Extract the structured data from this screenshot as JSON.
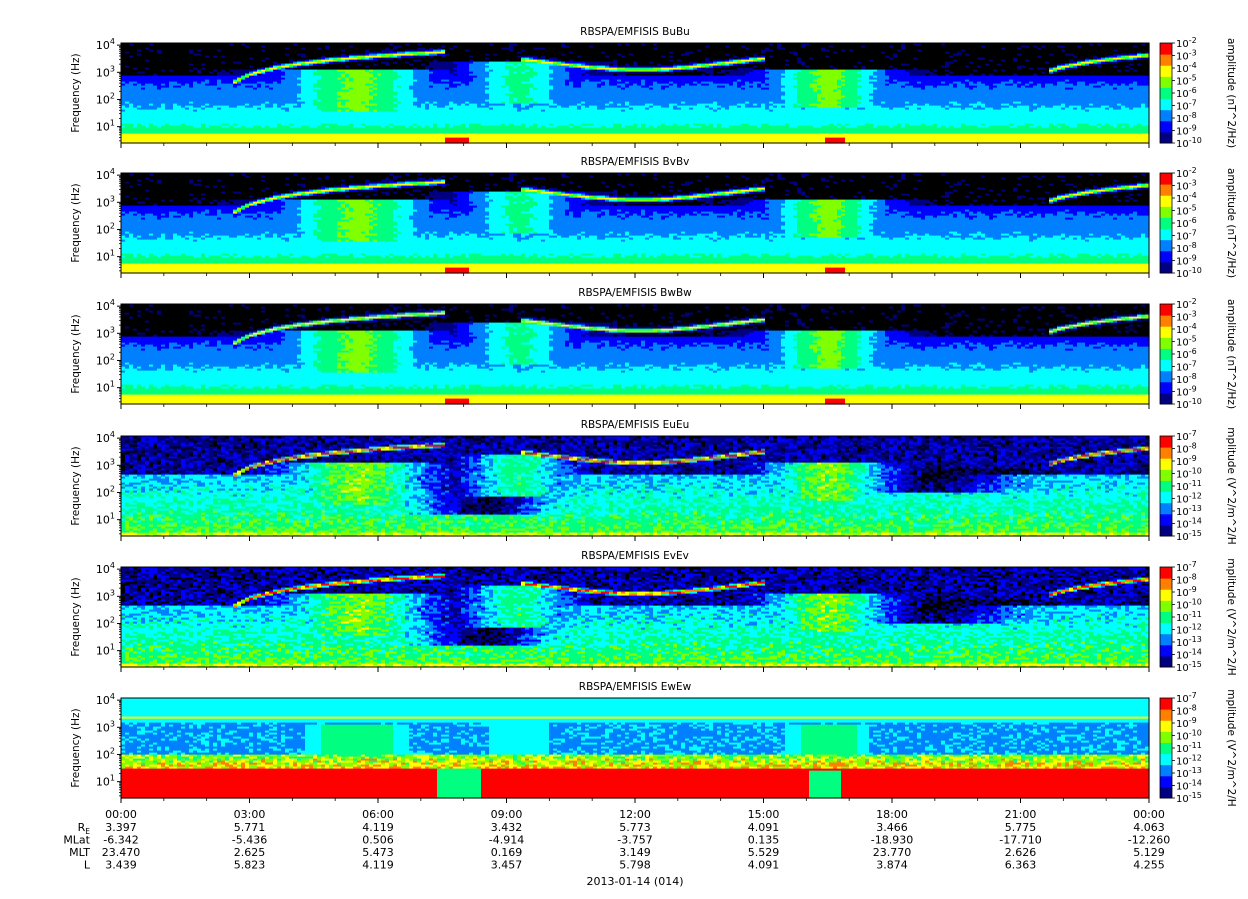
{
  "chart_data": {
    "type": "heatmap",
    "date_label": "2013-01-14 (014)",
    "x_ticks": [
      "00:00",
      "03:00",
      "06:00",
      "09:00",
      "12:00",
      "15:00",
      "18:00",
      "21:00",
      "00:00"
    ],
    "x_range_hours": [
      0,
      24
    ],
    "y_label": "Frequency (Hz)",
    "y_scale": "log",
    "y_range_hz": [
      2.5,
      12000
    ],
    "y_ticks": [
      {
        "base": "10",
        "exp": "1",
        "value": 10
      },
      {
        "base": "10",
        "exp": "2",
        "value": 100
      },
      {
        "base": "10",
        "exp": "3",
        "value": 1000
      },
      {
        "base": "10",
        "exp": "4",
        "value": 10000
      }
    ],
    "colormap": [
      "#000080",
      "#0000ff",
      "#0080ff",
      "#00ffff",
      "#00ff80",
      "#80ff00",
      "#ffff00",
      "#ff8000",
      "#ff0000"
    ],
    "panels": [
      {
        "title": "RBSPA/EMFISIS  BuBu",
        "type": "B",
        "colorbar_label": "amplitude (nT^2/Hz)",
        "colorbar_ticks": [
          {
            "base": "10",
            "exp": "-2"
          },
          {
            "base": "10",
            "exp": "-3"
          },
          {
            "base": "10",
            "exp": "-4"
          },
          {
            "base": "10",
            "exp": "-5"
          },
          {
            "base": "10",
            "exp": "-6"
          },
          {
            "base": "10",
            "exp": "-7"
          },
          {
            "base": "10",
            "exp": "-8"
          },
          {
            "base": "10",
            "exp": "-9"
          },
          {
            "base": "10",
            "exp": "-10"
          }
        ]
      },
      {
        "title": "RBSPA/EMFISIS  BvBv",
        "type": "B",
        "colorbar_label": "amplitude (nT^2/Hz)",
        "colorbar_ticks": [
          {
            "base": "10",
            "exp": "-2"
          },
          {
            "base": "10",
            "exp": "-3"
          },
          {
            "base": "10",
            "exp": "-4"
          },
          {
            "base": "10",
            "exp": "-5"
          },
          {
            "base": "10",
            "exp": "-6"
          },
          {
            "base": "10",
            "exp": "-7"
          },
          {
            "base": "10",
            "exp": "-8"
          },
          {
            "base": "10",
            "exp": "-9"
          },
          {
            "base": "10",
            "exp": "-10"
          }
        ]
      },
      {
        "title": "RBSPA/EMFISIS  BwBw",
        "type": "B",
        "colorbar_label": "amplitude (nT^2/Hz)",
        "colorbar_ticks": [
          {
            "base": "10",
            "exp": "-2"
          },
          {
            "base": "10",
            "exp": "-3"
          },
          {
            "base": "10",
            "exp": "-4"
          },
          {
            "base": "10",
            "exp": "-5"
          },
          {
            "base": "10",
            "exp": "-6"
          },
          {
            "base": "10",
            "exp": "-7"
          },
          {
            "base": "10",
            "exp": "-8"
          },
          {
            "base": "10",
            "exp": "-9"
          },
          {
            "base": "10",
            "exp": "-10"
          }
        ]
      },
      {
        "title": "RBSPA/EMFISIS  EuEu",
        "type": "E",
        "colorbar_label": "mplitude (V^2/m^2/H",
        "colorbar_ticks": [
          {
            "base": "10",
            "exp": "-7"
          },
          {
            "base": "10",
            "exp": "-8"
          },
          {
            "base": "10",
            "exp": "-9"
          },
          {
            "base": "10",
            "exp": "-10"
          },
          {
            "base": "10",
            "exp": "-11"
          },
          {
            "base": "10",
            "exp": "-12"
          },
          {
            "base": "10",
            "exp": "-13"
          },
          {
            "base": "10",
            "exp": "-14"
          },
          {
            "base": "10",
            "exp": "-15"
          }
        ]
      },
      {
        "title": "RBSPA/EMFISIS  EvEv",
        "type": "E",
        "colorbar_label": "mplitude (V^2/m^2/H",
        "colorbar_ticks": [
          {
            "base": "10",
            "exp": "-7"
          },
          {
            "base": "10",
            "exp": "-8"
          },
          {
            "base": "10",
            "exp": "-9"
          },
          {
            "base": "10",
            "exp": "-10"
          },
          {
            "base": "10",
            "exp": "-11"
          },
          {
            "base": "10",
            "exp": "-12"
          },
          {
            "base": "10",
            "exp": "-13"
          },
          {
            "base": "10",
            "exp": "-14"
          },
          {
            "base": "10",
            "exp": "-15"
          }
        ]
      },
      {
        "title": "RBSPA/EMFISIS  EwEw",
        "type": "Ew",
        "colorbar_label": "mplitude (V^2/m^2/H",
        "colorbar_ticks": [
          {
            "base": "10",
            "exp": "-7"
          },
          {
            "base": "10",
            "exp": "-8"
          },
          {
            "base": "10",
            "exp": "-9"
          },
          {
            "base": "10",
            "exp": "-10"
          },
          {
            "base": "10",
            "exp": "-11"
          },
          {
            "base": "10",
            "exp": "-12"
          },
          {
            "base": "10",
            "exp": "-13"
          },
          {
            "base": "10",
            "exp": "-14"
          },
          {
            "base": "10",
            "exp": "-15"
          }
        ]
      }
    ],
    "ephemeris": [
      {
        "label_main": "R",
        "label_sub": "E",
        "values": [
          "3.397",
          "5.771",
          "4.119",
          "3.432",
          "5.773",
          "4.091",
          "3.466",
          "5.775",
          "4.063"
        ]
      },
      {
        "label_main": "MLat",
        "label_sub": "",
        "values": [
          "-6.342",
          "-5.436",
          "0.506",
          "-4.914",
          "-3.757",
          "0.135",
          "-18.930",
          "-17.710",
          "-12.260"
        ]
      },
      {
        "label_main": "MLT",
        "label_sub": "",
        "values": [
          "23.470",
          "2.625",
          "5.473",
          "0.169",
          "3.149",
          "5.529",
          "23.770",
          "2.626",
          "5.129"
        ]
      },
      {
        "label_main": "L",
        "label_sub": "",
        "values": [
          "3.439",
          "5.823",
          "4.119",
          "3.457",
          "5.798",
          "4.091",
          "3.874",
          "6.363",
          "4.255"
        ]
      }
    ]
  }
}
